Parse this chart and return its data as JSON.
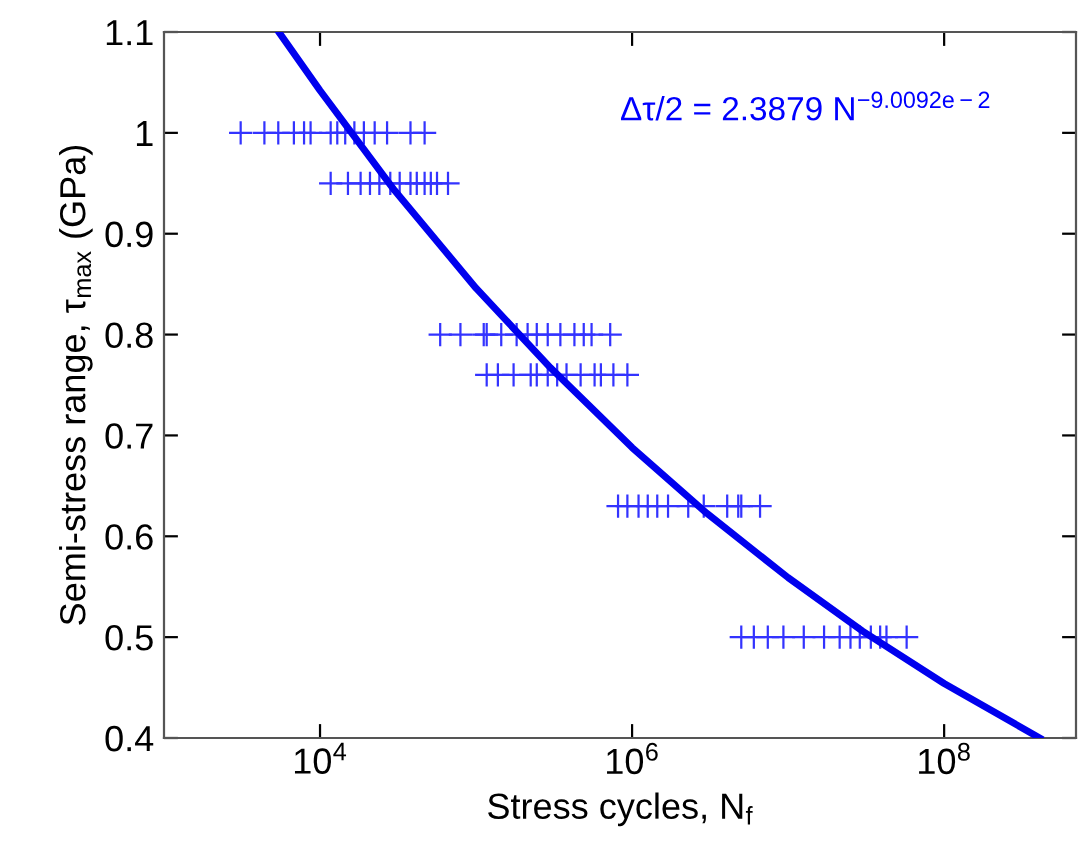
{
  "chart_data": {
    "type": "scatter",
    "xlabel": "Stress cycles, N$_{f}$",
    "ylabel": "Semi-stress range, τ$_{max}$ (GPa)",
    "annotations": [
      "Δτ/2 = 2.3879 N$^{−9.0092e−2}$"
    ],
    "log": "x",
    "grid": false,
    "marker": "cross",
    "xlim": [
      1000,
      700000000
    ],
    "ylim": [
      0.4,
      1.1
    ],
    "xticks": [
      {
        "value": 10000,
        "label": "10$^{4}$"
      },
      {
        "value": 1000000,
        "label": "10$^{6}$"
      },
      {
        "value": 100000000,
        "label": "10$^{8}$"
      }
    ],
    "yticks": [
      0.4,
      0.5,
      0.6,
      0.7,
      0.8,
      0.9,
      1,
      1.1
    ],
    "series": [
      {
        "color": "#3333ff",
        "x": [
          3100,
          4400,
          5400,
          6800,
          7900,
          8700,
          11700,
          12900,
          14500,
          16600,
          19100,
          22400,
          26900,
          38000,
          46800,
          11700,
          15100,
          18200,
          20900,
          24000,
          28200,
          32400,
          38000,
          41700,
          46800,
          51300,
          56200,
          66100,
          58900,
          79400,
          112000,
          117000,
          145000,
          182000,
          214000,
          245000,
          288000,
          347000,
          427000,
          490000,
          550000,
          724000,
          117000,
          138000,
          174000,
          224000,
          245000,
          288000,
          331000,
          380000,
          468000,
          575000,
          631000,
          759000,
          933000,
          813000,
          933000,
          1100000,
          1260000,
          1450000,
          1700000,
          2290000,
          2880000,
          4070000,
          4790000,
          5010000,
          6610000,
          5010000,
          6030000,
          7410000,
          9330000,
          12600000,
          17000000,
          21400000,
          25100000,
          28800000,
          33900000,
          38900000,
          42700000,
          57500000
        ],
        "values": [
          1,
          1,
          1,
          1,
          1,
          1,
          1,
          1,
          1,
          1,
          1,
          1,
          1,
          1,
          1,
          0.95,
          0.95,
          0.95,
          0.95,
          0.95,
          0.95,
          0.95,
          0.95,
          0.95,
          0.95,
          0.95,
          0.95,
          0.95,
          0.8,
          0.8,
          0.8,
          0.8,
          0.8,
          0.8,
          0.8,
          0.8,
          0.8,
          0.8,
          0.8,
          0.8,
          0.8,
          0.8,
          0.76,
          0.76,
          0.76,
          0.76,
          0.76,
          0.76,
          0.76,
          0.76,
          0.76,
          0.76,
          0.76,
          0.76,
          0.76,
          0.63,
          0.63,
          0.63,
          0.63,
          0.63,
          0.63,
          0.63,
          0.63,
          0.63,
          0.63,
          0.63,
          0.63,
          0.5,
          0.5,
          0.5,
          0.5,
          0.5,
          0.5,
          0.5,
          0.5,
          0.5,
          0.5,
          0.5,
          0.5,
          0.5
        ]
      },
      {
        "type": "line",
        "color": "#0000ee",
        "marker": "none",
        "line_style": "solid",
        "x": [
          5500,
          10000,
          30000,
          100000,
          300000,
          1000000,
          3000000,
          10000000,
          30000000,
          100000000,
          410000000
        ],
        "values": [
          1.099,
          1.042,
          0.943,
          0.846,
          0.767,
          0.688,
          0.623,
          0.559,
          0.506,
          0.454,
          0.4
        ]
      }
    ]
  }
}
